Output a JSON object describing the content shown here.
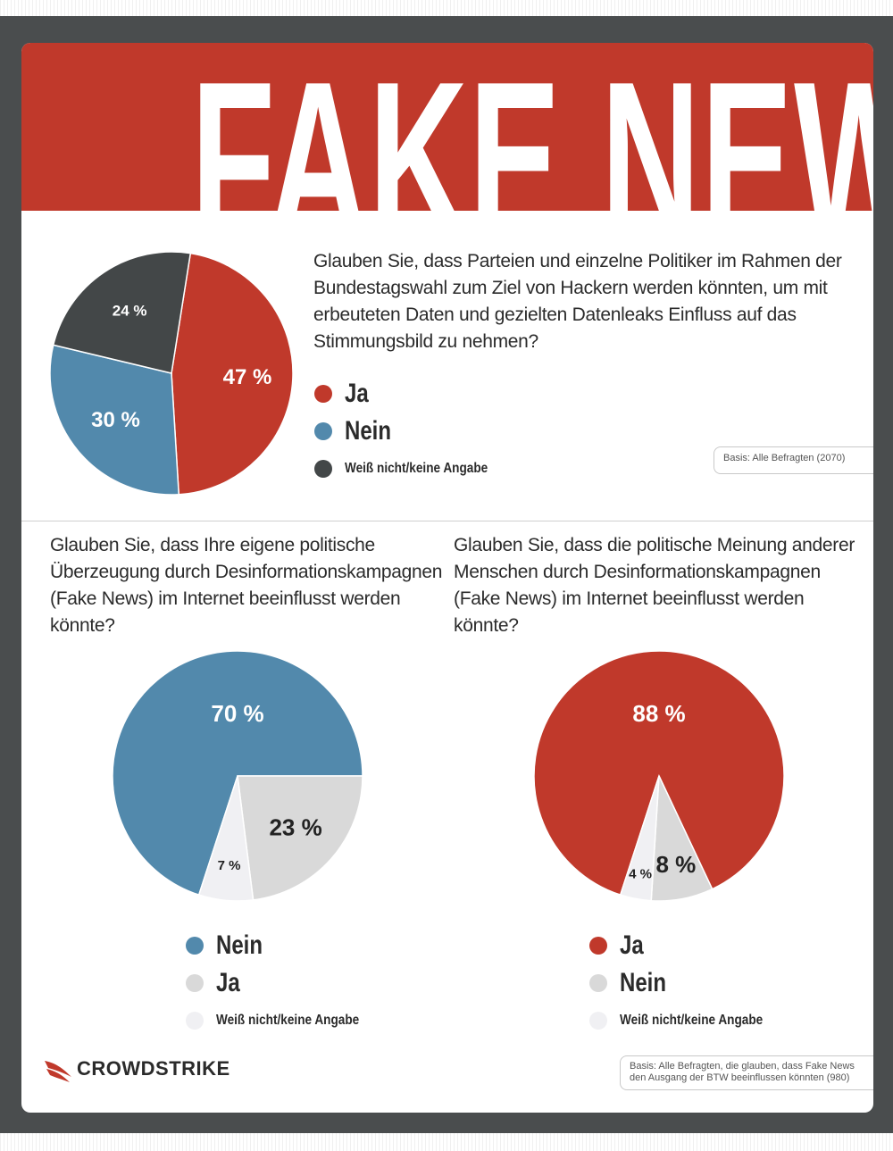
{
  "headline": "FAKE NEWS",
  "colors": {
    "red": "#c0392b",
    "blue": "#5289ac",
    "dark": "#434748",
    "lightgray": "#d9d9d9",
    "verylight": "#f0f0f3"
  },
  "question1": "Glauben Sie, dass Parteien und einzelne Politiker im Rahmen der Bundestagswahl zum Ziel von Hackern werden könnten, um mit erbeuteten Daten und gezielten Datenleaks Einfluss auf das Stimmungsbild zu nehmen?",
  "question2": "Glauben Sie, dass Ihre eigene politische Überzeugung durch Desinformationskampagnen (Fake News) im Internet beeinflusst werden könnte?",
  "question3": "Glauben Sie, dass die politische Meinung anderer Menschen durch Desinformationskampagnen (Fake News) im Internet beeinflusst werden könnte?",
  "basis1": "Basis: Alle Befragten (2070)",
  "basis2": "Basis: Alle Befragten, die glauben, dass Fake News den Ausgang der BTW beeinflussen könnten (980)",
  "logo": {
    "text": "CROWDSTRIKE",
    "icon": "crowdstrike-falcon-icon"
  },
  "chart_data": [
    {
      "type": "pie",
      "slices": [
        {
          "label": "Ja",
          "value": 47,
          "display": "47 %",
          "color": "#c0392b"
        },
        {
          "label": "Nein",
          "value": 30,
          "display": "30 %",
          "color": "#5289ac"
        },
        {
          "label": "Weiß nicht/keine Angabe",
          "value": 24,
          "display": "24 %",
          "color": "#434748"
        }
      ],
      "legend": [
        {
          "label": "Ja",
          "color": "#c0392b"
        },
        {
          "label": "Nein",
          "color": "#5289ac"
        },
        {
          "label": "Weiß nicht/keine Angabe",
          "color": "#434748"
        }
      ]
    },
    {
      "type": "pie",
      "slices": [
        {
          "label": "Nein",
          "value": 70,
          "display": "70 %",
          "color": "#5289ac"
        },
        {
          "label": "Ja",
          "value": 23,
          "display": "23 %",
          "color": "#d9d9d9"
        },
        {
          "label": "Weiß nicht/keine Angabe",
          "value": 7,
          "display": "7 %",
          "color": "#f0f0f3"
        }
      ],
      "legend": [
        {
          "label": "Nein",
          "color": "#5289ac"
        },
        {
          "label": "Ja",
          "color": "#d9d9d9"
        },
        {
          "label": "Weiß nicht/keine Angabe",
          "color": "#f0f0f3"
        }
      ]
    },
    {
      "type": "pie",
      "slices": [
        {
          "label": "Ja",
          "value": 88,
          "display": "88 %",
          "color": "#c0392b"
        },
        {
          "label": "Nein",
          "value": 8,
          "display": "8 %",
          "color": "#d9d9d9"
        },
        {
          "label": "Weiß nicht/keine Angabe",
          "value": 4,
          "display": "4 %",
          "color": "#f0f0f3"
        }
      ],
      "legend": [
        {
          "label": "Ja",
          "color": "#c0392b"
        },
        {
          "label": "Nein",
          "color": "#d9d9d9"
        },
        {
          "label": "Weiß nicht/keine Angabe",
          "color": "#f0f0f3"
        }
      ]
    }
  ]
}
